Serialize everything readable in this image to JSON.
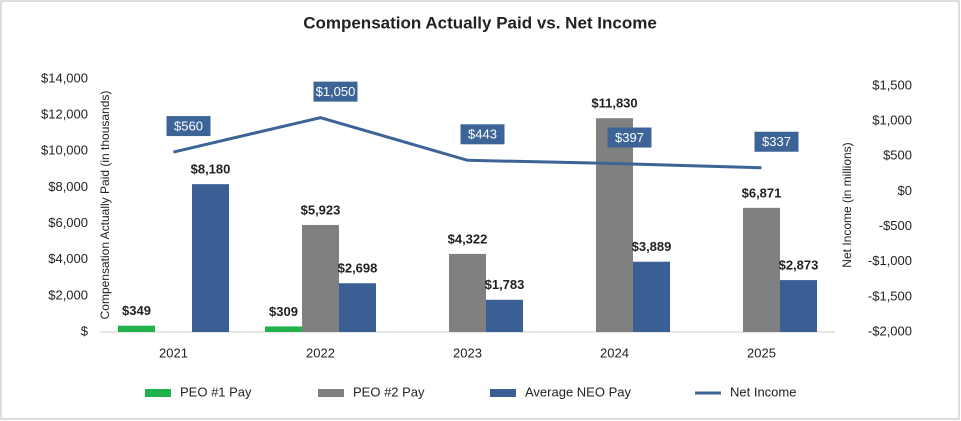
{
  "chart_data": {
    "type": "bar-line",
    "title": "Compensation Actually Paid vs. Net Income",
    "y_axis_label": "Compensation Actually Paid (in thousands)",
    "y2_axis_label": "Net Income (in millions)",
    "categories": [
      "2021",
      "2022",
      "2023",
      "2024",
      "2025"
    ],
    "ylim": [
      0,
      14000
    ],
    "yticks": [
      {
        "value": 0,
        "label": "$"
      },
      {
        "value": 2000,
        "label": "$2,000"
      },
      {
        "value": 4000,
        "label": "$4,000"
      },
      {
        "value": 6000,
        "label": "$6,000"
      },
      {
        "value": 8000,
        "label": "$8,000"
      },
      {
        "value": 10000,
        "label": "$10,000"
      },
      {
        "value": 12000,
        "label": "$12,000"
      },
      {
        "value": 14000,
        "label": "$14,000"
      }
    ],
    "y2lim": [
      -2000,
      1500
    ],
    "y2ticks": [
      {
        "value": -2000,
        "label": "-$2,000"
      },
      {
        "value": -1500,
        "label": "-$1,500"
      },
      {
        "value": -1000,
        "label": "-$1,000"
      },
      {
        "value": -500,
        "label": "-$500"
      },
      {
        "value": 0,
        "label": "$0"
      },
      {
        "value": 500,
        "label": "$500"
      },
      {
        "value": 1000,
        "label": "$1,000"
      },
      {
        "value": 1500,
        "label": "$1,500"
      }
    ],
    "series": [
      {
        "name": "PEO #1 Pay",
        "type": "bar",
        "color": "#22b24c",
        "values": [
          349,
          309,
          null,
          null,
          null
        ],
        "value_labels": [
          "$349",
          "$309",
          null,
          null,
          null
        ]
      },
      {
        "name": "PEO #2 Pay",
        "type": "bar",
        "color": "#808080",
        "values": [
          null,
          5923,
          4322,
          11830,
          6871
        ],
        "value_labels": [
          null,
          "$5,923",
          "$4,322",
          "$11,830",
          "$6,871"
        ]
      },
      {
        "name": "Average NEO Pay",
        "type": "bar",
        "color": "#3a5f94",
        "values": [
          8180,
          2698,
          1783,
          3889,
          2873
        ],
        "value_labels": [
          "$8,180",
          "$2,698",
          "$1,783",
          "$3,889",
          "$2,873"
        ]
      },
      {
        "name": "Net Income",
        "type": "line",
        "axis": "y2",
        "color": "#3d6497",
        "values": [
          560,
          1050,
          443,
          397,
          337
        ],
        "value_labels": [
          "$560",
          "$1,050",
          "$443",
          "$397",
          "$337"
        ]
      }
    ]
  }
}
